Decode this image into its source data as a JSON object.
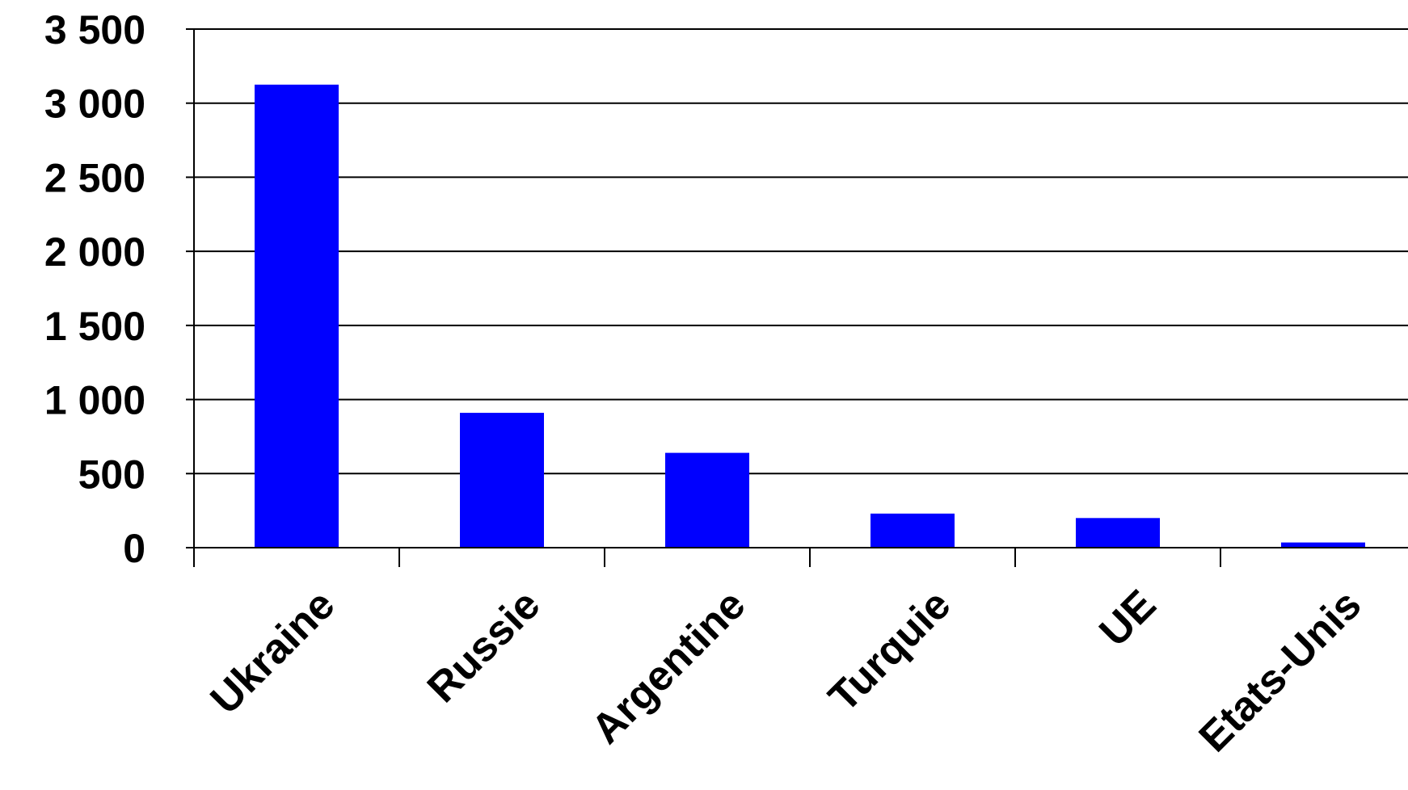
{
  "chart_data": {
    "type": "bar",
    "title": "",
    "xlabel": "",
    "ylabel": "",
    "categories": [
      "Ukraine",
      "Russie",
      "Argentine",
      "Turquie",
      "UE",
      "Etats-Unis"
    ],
    "values": [
      3125,
      910,
      640,
      230,
      200,
      35
    ],
    "ylim": [
      0,
      3500
    ],
    "yticks": [
      0,
      500,
      1000,
      1500,
      2000,
      2500,
      3000,
      3500
    ],
    "ytick_labels": [
      "0",
      "500",
      "1 000",
      "1 500",
      "2 000",
      "2 500",
      "3 000",
      "3 500"
    ],
    "grid": true,
    "legend": "none",
    "bar_color": "#0000ff",
    "axis_color": "#000000",
    "grid_color": "#000000"
  }
}
